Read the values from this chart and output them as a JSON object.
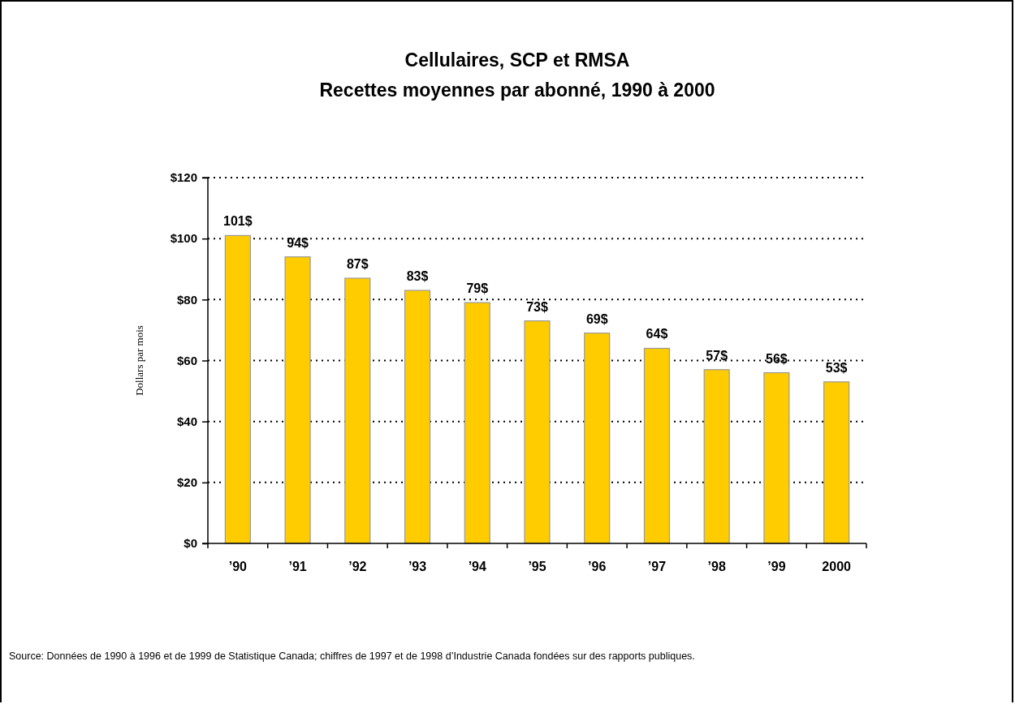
{
  "chart_data": {
    "type": "bar",
    "title": "Cellulaires, SCP et RMSA\nRecettes moyennes par abonné, 1990 à 2000",
    "ylabel": "Dollars par mois",
    "categories": [
      "’90",
      "’91",
      "’92",
      "’93",
      "’94",
      "’95",
      "’96",
      "’97",
      "’98",
      "’99",
      "2000"
    ],
    "values": [
      101,
      94,
      87,
      83,
      79,
      73,
      69,
      64,
      57,
      56,
      53
    ],
    "value_labels": [
      "101$",
      "94$",
      "87$",
      "83$",
      "79$",
      "73$",
      "69$",
      "64$",
      "57$",
      "56$",
      "53$"
    ],
    "color": "#ffcc00",
    "ylim": [
      0,
      120
    ],
    "yticks": [
      {
        "value": 0,
        "label": "$0"
      },
      {
        "value": 20,
        "label": "$20"
      },
      {
        "value": 40,
        "label": "$40"
      },
      {
        "value": 60,
        "label": "$60"
      },
      {
        "value": 80,
        "label": "$80"
      },
      {
        "value": 100,
        "label": "$100"
      },
      {
        "value": 120,
        "label": "$120"
      }
    ],
    "grid": "y",
    "annotations": [
      "Source: Données de 1990 à 1996 et de 1999 de Statistique Canada; chiffres de 1997 et de 1998 d’Industrie Canada fondées sur des rapports publiques."
    ]
  }
}
